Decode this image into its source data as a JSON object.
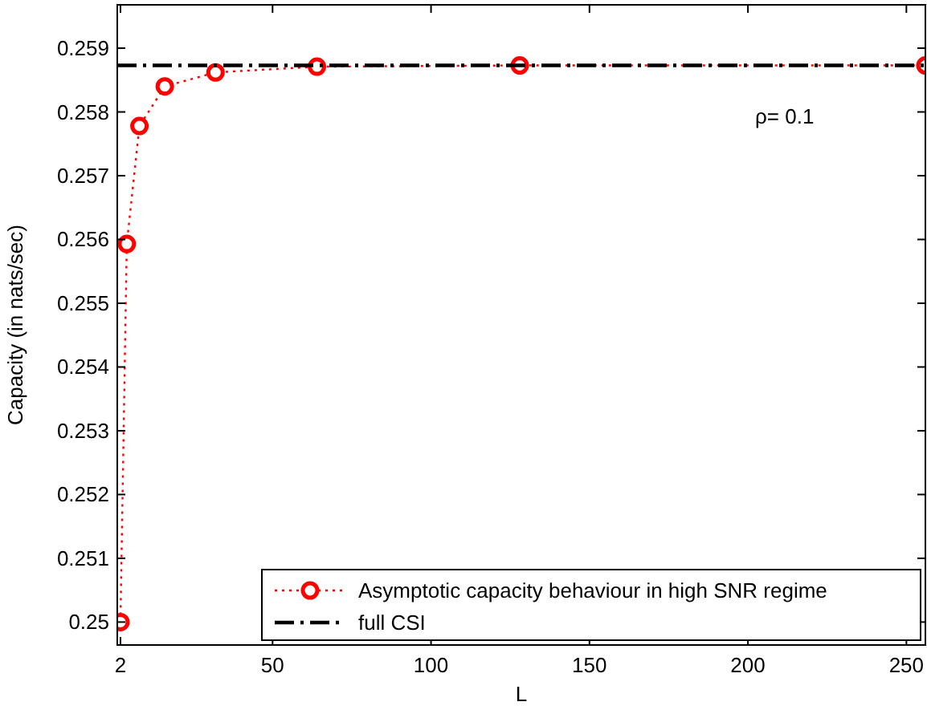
{
  "chart_data": {
    "type": "line",
    "xlabel": "L",
    "ylabel": "Capacity (in nats/sec)",
    "xlim": [
      1,
      256
    ],
    "xticks": [
      2,
      50,
      100,
      150,
      200,
      250
    ],
    "ylim": [
      0.24964,
      0.25968
    ],
    "yticks": [
      0.25,
      0.251,
      0.252,
      0.253,
      0.254,
      0.255,
      0.256,
      0.257,
      0.258,
      0.259
    ],
    "grid": false,
    "legend": "bottom right",
    "annotations": [
      "ρ= 0.1"
    ],
    "series": [
      {
        "name": "Asymptotic capacity behaviour in high SNR regime",
        "color": "#ff0000",
        "marker": "circle",
        "line_style": "dotted",
        "x": [
          2,
          4,
          8,
          16,
          32,
          64,
          128,
          256
        ],
        "values": [
          0.25,
          0.25593,
          0.25778,
          0.2584,
          0.25862,
          0.25871,
          0.25873,
          0.25873
        ]
      },
      {
        "name": "full CSI",
        "color": "#000000",
        "marker": "none",
        "line_style": "dashed",
        "x": [
          1,
          256
        ],
        "values": [
          0.25873,
          0.25873
        ]
      }
    ]
  }
}
